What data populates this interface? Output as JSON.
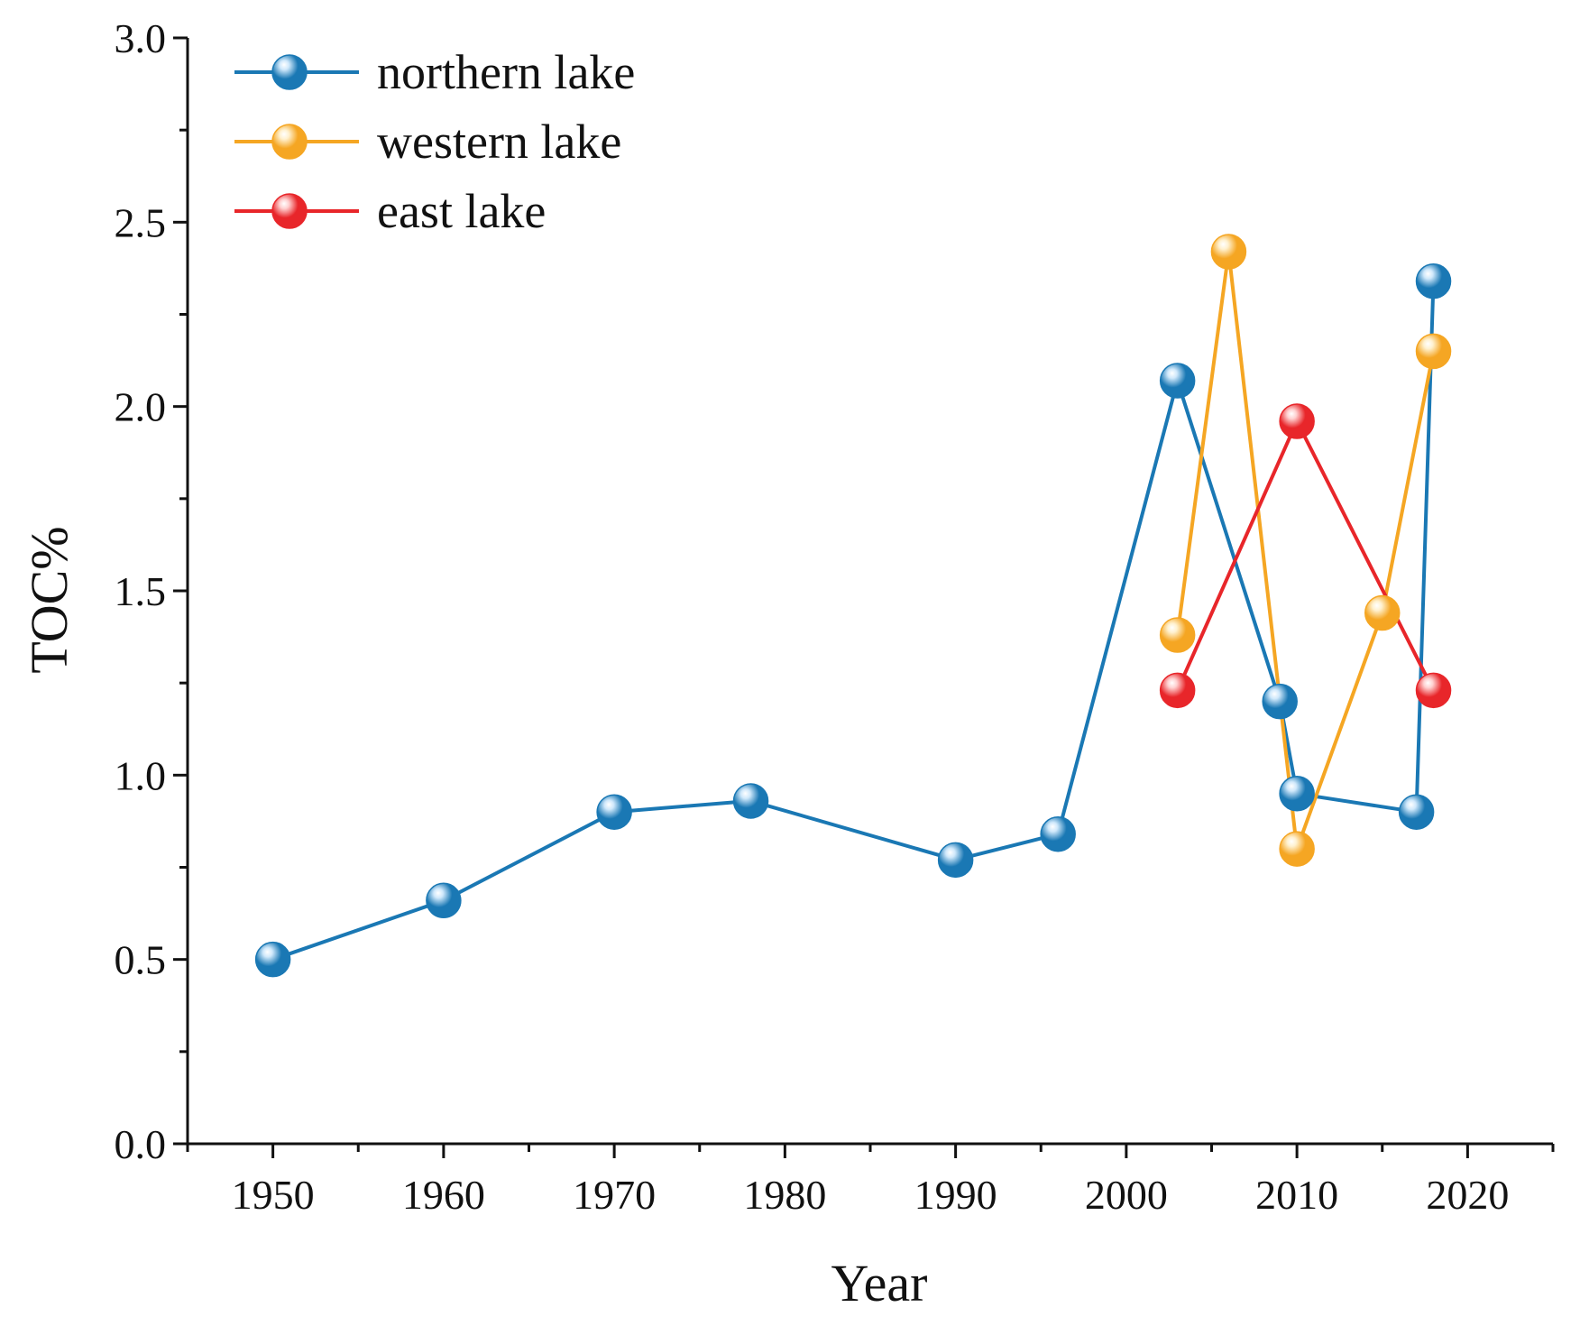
{
  "chart_data": {
    "type": "line",
    "title": "",
    "xlabel": "Year",
    "ylabel": "TOC%",
    "xlim": [
      1945,
      2025
    ],
    "ylim": [
      0.0,
      3.0
    ],
    "x_ticks": [
      1950,
      1960,
      1970,
      1980,
      1990,
      2000,
      2010,
      2020
    ],
    "x_tick_labels": [
      "1950",
      "1960",
      "1970",
      "1980",
      "1990",
      "2000",
      "2010",
      "2020"
    ],
    "y_ticks": [
      0.0,
      0.5,
      1.0,
      1.5,
      2.0,
      2.5,
      3.0
    ],
    "y_tick_labels": [
      "0.0",
      "0.5",
      "1.0",
      "1.5",
      "2.0",
      "2.5",
      "3.0"
    ],
    "grid": false,
    "legend_position": "top-left",
    "series": [
      {
        "name": "northern lake",
        "color": "#1a78b4",
        "highlight": "#cfe8fb",
        "x": [
          1950,
          1960,
          1970,
          1978,
          1990,
          1996,
          2003,
          2009,
          2010,
          2017,
          2018
        ],
        "y": [
          0.5,
          0.66,
          0.9,
          0.93,
          0.77,
          0.84,
          2.07,
          1.2,
          0.95,
          0.9,
          2.34
        ]
      },
      {
        "name": "western lake",
        "color": "#f5a623",
        "highlight": "#fff1cf",
        "x": [
          2003,
          2006,
          2010,
          2015,
          2018
        ],
        "y": [
          1.38,
          2.42,
          0.8,
          1.44,
          2.15
        ]
      },
      {
        "name": "east lake",
        "color": "#e8262a",
        "highlight": "#ffd0d0",
        "x": [
          2003,
          2010,
          2018
        ],
        "y": [
          1.23,
          1.96,
          1.23
        ]
      }
    ]
  }
}
